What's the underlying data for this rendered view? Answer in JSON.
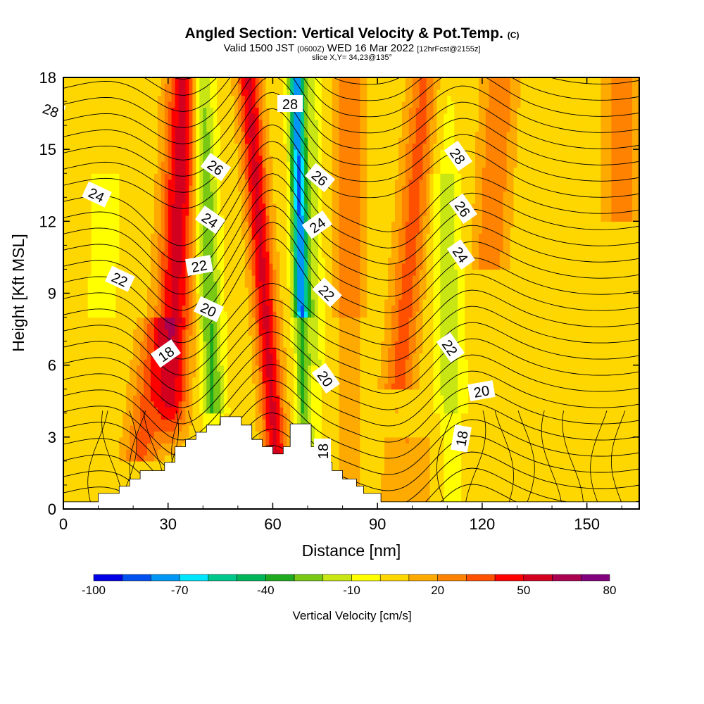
{
  "header": {
    "title": "Angled Section: Vertical Velocity & Pot.Temp.",
    "title_suffix": "(C)",
    "valid_prefix": "Valid 1500 JST",
    "valid_utc": "(0600Z)",
    "valid_date": "WED 16 Mar 2022",
    "forecast": "[12hrFcst@2155z]",
    "slice": "slice X,Y= 34,23@135°"
  },
  "chart_data": {
    "type": "heatmap",
    "xlabel": "Distance [nm]",
    "ylabel": "Height [Kft MSL]",
    "xlim": [
      0,
      165
    ],
    "ylim": [
      0,
      18
    ],
    "x_ticks": [
      "0",
      "30",
      "60",
      "90",
      "120",
      "150"
    ],
    "y_ticks": [
      "0",
      "3",
      "6",
      "9",
      "12",
      "15",
      "18"
    ],
    "colorbar": {
      "title": "Vertical Velocity [cm/s]",
      "min": -100,
      "max": 80,
      "step": 10,
      "tick_labels": [
        "-100",
        "-70",
        "-40",
        "-10",
        "20",
        "50",
        "80"
      ],
      "colors": [
        "#0000e6",
        "#0050f0",
        "#0096f5",
        "#00e6ff",
        "#00c88c",
        "#00b45a",
        "#1eaa1e",
        "#78c814",
        "#c8e614",
        "#ffff00",
        "#ffd700",
        "#ffaa00",
        "#ff8200",
        "#ff5000",
        "#ff0000",
        "#d2001e",
        "#aa0050",
        "#82007d"
      ]
    },
    "contour_labels": [
      "28",
      "28",
      "28",
      "26",
      "26",
      "26",
      "24",
      "24",
      "24",
      "24",
      "22",
      "22",
      "22",
      "22",
      "20",
      "20",
      "20",
      "18",
      "18",
      "18"
    ],
    "terrain_note": "",
    "isentrope_levels": [
      18,
      20,
      22,
      24,
      26,
      28
    ]
  }
}
